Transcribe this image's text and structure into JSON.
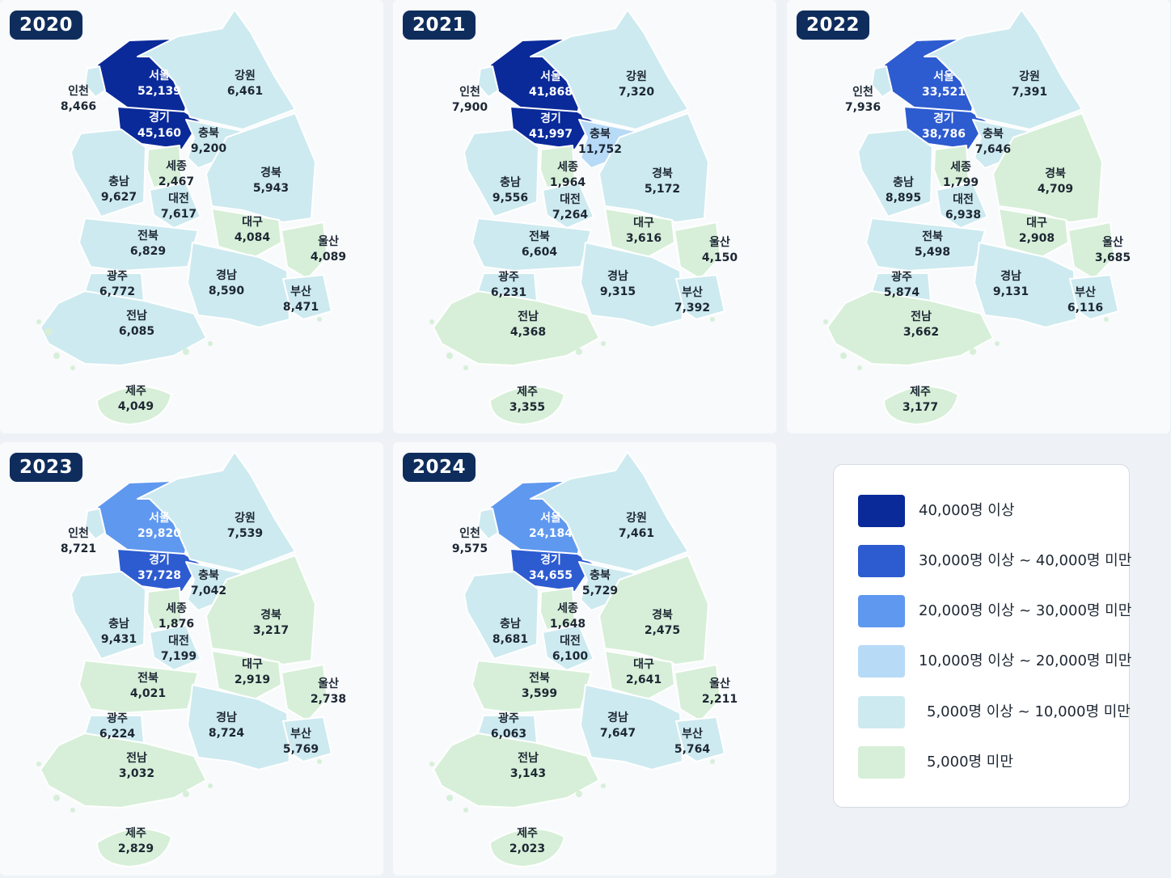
{
  "legend": [
    {
      "label": "40,000명 이상",
      "color": "#0a2a9a"
    },
    {
      "label": "30,000명 이상 ~ 40,000명 미만",
      "color": "#2d5bd0"
    },
    {
      "label": "20,000명 이상 ~ 30,000명 미만",
      "color": "#5f98ef"
    },
    {
      "label": "10,000명 이상 ~ 20,000명 미만",
      "color": "#b7daf7"
    },
    {
      "label": "5,000명 이상 ~ 10,000명 미만",
      "color": "#cdeaf0"
    },
    {
      "label": "5,000명 미만",
      "color": "#d7efd8"
    }
  ],
  "regions": [
    "서울",
    "경기",
    "인천",
    "강원",
    "충북",
    "충남",
    "세종",
    "대전",
    "경북",
    "대구",
    "전북",
    "울산",
    "광주",
    "경남",
    "부산",
    "전남",
    "제주"
  ],
  "maps": [
    {
      "year": "2020",
      "values": {
        "서울": "52,139",
        "경기": "45,160",
        "인천": "8,466",
        "강원": "6,461",
        "충북": "9,200",
        "충남": "9,627",
        "세종": "2,467",
        "대전": "7,617",
        "경북": "5,943",
        "대구": "4,084",
        "전북": "6,829",
        "울산": "4,089",
        "광주": "6,772",
        "경남": "8,590",
        "부산": "8,471",
        "전남": "6,085",
        "제주": "4,049"
      }
    },
    {
      "year": "2021",
      "values": {
        "서울": "41,868",
        "경기": "41,997",
        "인천": "7,900",
        "강원": "7,320",
        "충북": "11,752",
        "충남": "9,556",
        "세종": "1,964",
        "대전": "7,264",
        "경북": "5,172",
        "대구": "3,616",
        "전북": "6,604",
        "울산": "4,150",
        "광주": "6,231",
        "경남": "9,315",
        "부산": "7,392",
        "전남": "4,368",
        "제주": "3,355"
      }
    },
    {
      "year": "2022",
      "values": {
        "서울": "33,521",
        "경기": "38,786",
        "인천": "7,936",
        "강원": "7,391",
        "충북": "7,646",
        "충남": "8,895",
        "세종": "1,799",
        "대전": "6,938",
        "경북": "4,709",
        "대구": "2,908",
        "전북": "5,498",
        "울산": "3,685",
        "광주": "5,874",
        "경남": "9,131",
        "부산": "6,116",
        "전남": "3,662",
        "제주": "3,177"
      }
    },
    {
      "year": "2023",
      "values": {
        "서울": "29,820",
        "경기": "37,728",
        "인천": "8,721",
        "강원": "7,539",
        "충북": "7,042",
        "충남": "9,431",
        "세종": "1,876",
        "대전": "7,199",
        "경북": "3,217",
        "대구": "2,919",
        "전북": "4,021",
        "울산": "2,738",
        "광주": "6,224",
        "경남": "8,724",
        "부산": "5,769",
        "전남": "3,032",
        "제주": "2,829"
      }
    },
    {
      "year": "2024",
      "values": {
        "서울": "24,184",
        "경기": "34,655",
        "인천": "9,575",
        "강원": "7,461",
        "충북": "5,729",
        "충남": "8,681",
        "세종": "1,648",
        "대전": "6,100",
        "경북": "2,475",
        "대구": "2,641",
        "전북": "3,599",
        "울산": "2,211",
        "광주": "6,063",
        "경남": "7,647",
        "부산": "5,764",
        "전남": "3,143",
        "제주": "2,023"
      }
    }
  ]
}
